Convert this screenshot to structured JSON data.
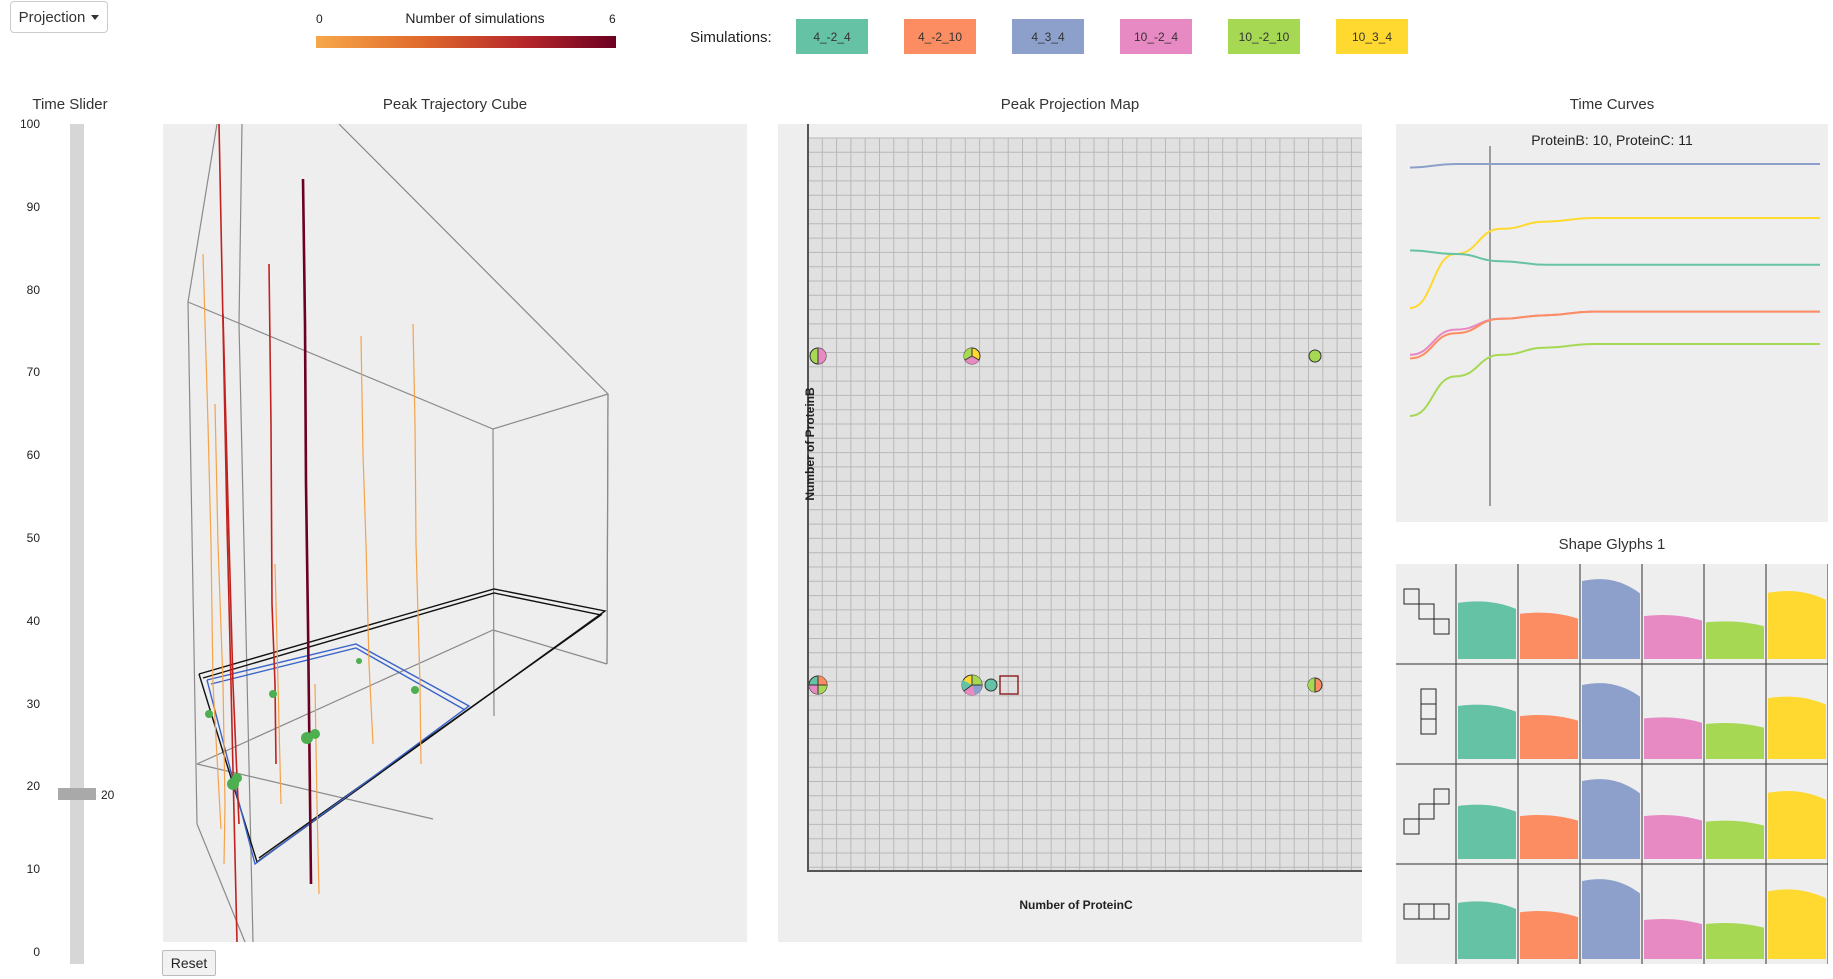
{
  "toolbar": {
    "projection_label": "Projection"
  },
  "legend": {
    "title": "Number of simulations",
    "min": "0",
    "max": "6",
    "colors": [
      "#f7a84a",
      "#e06a2c",
      "#b5262a",
      "#6b0021"
    ]
  },
  "simulations": {
    "label": "Simulations:",
    "items": [
      {
        "name": "4_-2_4",
        "color": "#66c2a5"
      },
      {
        "name": "4_-2_10",
        "color": "#fc8d62"
      },
      {
        "name": "4_3_4",
        "color": "#8da0cb"
      },
      {
        "name": "10_-2_4",
        "color": "#e78ac3"
      },
      {
        "name": "10_-2_10",
        "color": "#a6d854"
      },
      {
        "name": "10_3_4",
        "color": "#ffd92f"
      }
    ]
  },
  "time_slider": {
    "title": "Time Slider",
    "ticks": [
      "100",
      "90",
      "80",
      "70",
      "60",
      "50",
      "40",
      "30",
      "20",
      "10",
      "0"
    ],
    "value": "20"
  },
  "cube": {
    "title": "Peak Trajectory Cube",
    "reset_label": "Reset"
  },
  "projection_map": {
    "title": "Peak Projection Map",
    "xlabel": "Number of ProteinC",
    "ylabel": "Number of ProteinB"
  },
  "time_curves": {
    "title": "Time Curves",
    "subtitle": "ProteinB: 10, ProteinC: 11",
    "chart_data": {
      "type": "line",
      "series": [
        {
          "color": "#8da0cb",
          "values": [
            0.06,
            0.05,
            0.05,
            0.05,
            0.05,
            0.05,
            0.05,
            0.05,
            0.05,
            0.05
          ]
        },
        {
          "color": "#ffd92f",
          "values": [
            0.45,
            0.3,
            0.23,
            0.21,
            0.2,
            0.2,
            0.2,
            0.2,
            0.2,
            0.2
          ]
        },
        {
          "color": "#66c2a5",
          "values": [
            0.29,
            0.3,
            0.32,
            0.33,
            0.33,
            0.33,
            0.33,
            0.33,
            0.33,
            0.33
          ]
        },
        {
          "color": "#e78ac3",
          "values": [
            0.58,
            0.51,
            0.48,
            0.47,
            0.46,
            0.46,
            0.46,
            0.46,
            0.46,
            0.46
          ]
        },
        {
          "color": "#fc8d62",
          "values": [
            0.59,
            0.52,
            0.48,
            0.47,
            0.46,
            0.46,
            0.46,
            0.46,
            0.46,
            0.46
          ]
        },
        {
          "color": "#a6d854",
          "values": [
            0.75,
            0.64,
            0.58,
            0.56,
            0.55,
            0.55,
            0.55,
            0.55,
            0.55,
            0.55
          ]
        }
      ]
    }
  },
  "shape_glyphs": {
    "title": "Shape Glyphs 1",
    "rows": [
      {
        "shape": "staircase-down-icon",
        "values": [
          0.72,
          0.58,
          1.0,
          0.55,
          0.47,
          0.85
        ]
      },
      {
        "shape": "vertical-bar-icon",
        "values": [
          0.68,
          0.55,
          0.95,
          0.52,
          0.45,
          0.78
        ]
      },
      {
        "shape": "staircase-up-icon",
        "values": [
          0.68,
          0.55,
          1.0,
          0.55,
          0.48,
          0.85
        ]
      },
      {
        "shape": "horizontal-bar-icon",
        "values": [
          0.72,
          0.6,
          1.0,
          0.5,
          0.45,
          0.87
        ]
      }
    ]
  }
}
